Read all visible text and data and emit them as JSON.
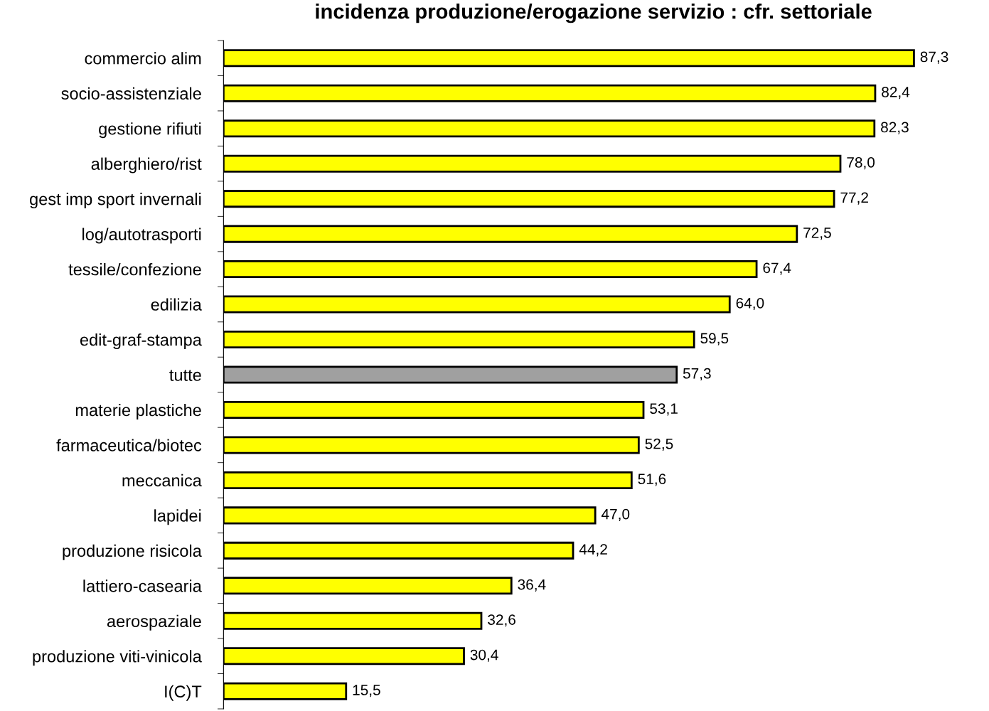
{
  "chart_data": {
    "type": "bar",
    "orientation": "horizontal",
    "title": "incidenza produzione/erogazione servizio : cfr. settoriale",
    "categories": [
      "commercio alim",
      "socio-assistenziale",
      "gestione rifiuti",
      "alberghiero/rist",
      "gest imp sport invernali",
      "log/autotrasporti",
      "tessile/confezione",
      "edilizia",
      "edit-graf-stampa",
      "tutte",
      "materie plastiche",
      "farmaceutica/biotec",
      "meccanica",
      "lapidei",
      "produzione risicola",
      "lattiero-casearia",
      "aerospaziale",
      "produzione viti-vinicola",
      "I(C)T"
    ],
    "values": [
      87.3,
      82.4,
      82.3,
      78.0,
      77.2,
      72.5,
      67.4,
      64.0,
      59.5,
      57.3,
      53.1,
      52.5,
      51.6,
      47.0,
      44.2,
      36.4,
      32.6,
      30.4,
      15.5
    ],
    "value_labels": [
      "87,3",
      "82,4",
      "82,3",
      "78,0",
      "77,2",
      "72,5",
      "67,4",
      "64,0",
      "59,5",
      "57,3",
      "53,1",
      "52,5",
      "51,6",
      "47,0",
      "44,2",
      "36,4",
      "32,6",
      "30,4",
      "15,5"
    ],
    "colors": [
      "#ffff00",
      "#ffff00",
      "#ffff00",
      "#ffff00",
      "#ffff00",
      "#ffff00",
      "#ffff00",
      "#ffff00",
      "#ffff00",
      "#a0a0a0",
      "#ffff00",
      "#ffff00",
      "#ffff00",
      "#ffff00",
      "#ffff00",
      "#ffff00",
      "#ffff00",
      "#ffff00",
      "#ffff00"
    ],
    "grid": false,
    "legend": false
  }
}
